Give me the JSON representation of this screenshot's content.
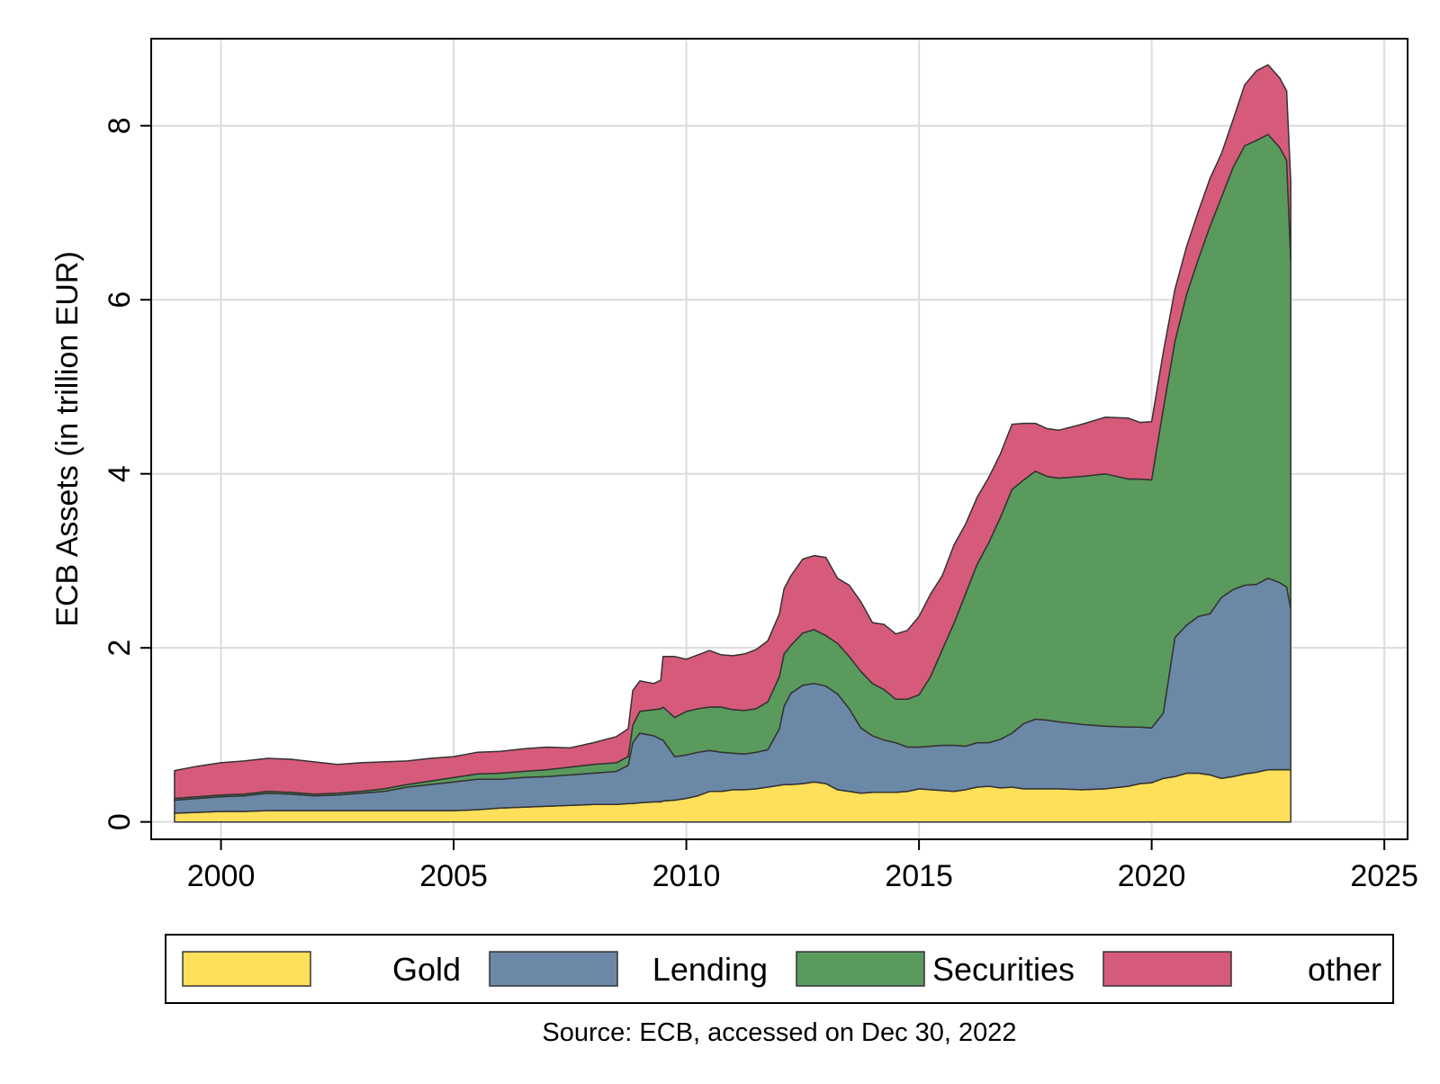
{
  "chart_data": {
    "type": "area",
    "stacked": true,
    "title": "",
    "xlabel": "",
    "ylabel": "ECB Assets (in trillion EUR)",
    "note": "Source: ECB, accessed on Dec 30, 2022",
    "xlim": [
      1998.5,
      2025.5
    ],
    "ylim": [
      -0.2,
      9.0
    ],
    "xticks": [
      2000,
      2005,
      2010,
      2015,
      2020,
      2025
    ],
    "yticks": [
      0,
      2,
      4,
      6,
      8
    ],
    "grid": true,
    "legend_position": "bottom",
    "x": [
      1999.0,
      1999.5,
      2000.0,
      2000.5,
      2001.0,
      2001.5,
      2002.0,
      2002.5,
      2003.0,
      2003.5,
      2004.0,
      2004.5,
      2005.0,
      2005.5,
      2006.0,
      2006.5,
      2007.0,
      2007.5,
      2008.0,
      2008.5,
      2008.75,
      2008.85,
      2009.0,
      2009.3,
      2009.45,
      2009.5,
      2009.75,
      2010.0,
      2010.25,
      2010.5,
      2010.75,
      2011.0,
      2011.25,
      2011.5,
      2011.75,
      2012.0,
      2012.1,
      2012.25,
      2012.5,
      2012.75,
      2013.0,
      2013.25,
      2013.5,
      2013.75,
      2014.0,
      2014.25,
      2014.5,
      2014.75,
      2015.0,
      2015.25,
      2015.5,
      2015.75,
      2016.0,
      2016.25,
      2016.5,
      2016.75,
      2017.0,
      2017.25,
      2017.5,
      2017.75,
      2018.0,
      2018.5,
      2019.0,
      2019.5,
      2019.75,
      2020.0,
      2020.25,
      2020.5,
      2020.75,
      2021.0,
      2021.25,
      2021.5,
      2021.75,
      2022.0,
      2022.25,
      2022.5,
      2022.75,
      2022.9,
      2022.99
    ],
    "series": [
      {
        "name": "Gold",
        "color": "#ffe05a",
        "values": [
          0.1,
          0.11,
          0.12,
          0.12,
          0.13,
          0.13,
          0.13,
          0.13,
          0.13,
          0.13,
          0.13,
          0.13,
          0.13,
          0.14,
          0.16,
          0.17,
          0.18,
          0.19,
          0.2,
          0.2,
          0.21,
          0.21,
          0.22,
          0.23,
          0.23,
          0.24,
          0.25,
          0.27,
          0.3,
          0.35,
          0.35,
          0.37,
          0.37,
          0.38,
          0.4,
          0.42,
          0.43,
          0.43,
          0.44,
          0.46,
          0.44,
          0.37,
          0.35,
          0.33,
          0.34,
          0.34,
          0.34,
          0.35,
          0.38,
          0.37,
          0.36,
          0.35,
          0.37,
          0.4,
          0.41,
          0.39,
          0.4,
          0.38,
          0.38,
          0.38,
          0.38,
          0.37,
          0.38,
          0.41,
          0.44,
          0.45,
          0.5,
          0.52,
          0.56,
          0.56,
          0.54,
          0.5,
          0.52,
          0.55,
          0.57,
          0.6,
          0.6,
          0.6,
          0.6
        ]
      },
      {
        "name": "Lending",
        "color": "#6c88a7",
        "values": [
          0.15,
          0.16,
          0.17,
          0.18,
          0.2,
          0.19,
          0.17,
          0.18,
          0.2,
          0.22,
          0.27,
          0.3,
          0.33,
          0.35,
          0.33,
          0.34,
          0.34,
          0.35,
          0.36,
          0.38,
          0.44,
          0.7,
          0.8,
          0.76,
          0.72,
          0.7,
          0.5,
          0.5,
          0.5,
          0.47,
          0.45,
          0.42,
          0.41,
          0.42,
          0.43,
          0.65,
          0.9,
          1.05,
          1.13,
          1.13,
          1.12,
          1.1,
          0.95,
          0.75,
          0.65,
          0.6,
          0.57,
          0.51,
          0.48,
          0.5,
          0.52,
          0.53,
          0.5,
          0.51,
          0.5,
          0.56,
          0.62,
          0.75,
          0.8,
          0.79,
          0.77,
          0.75,
          0.72,
          0.68,
          0.65,
          0.63,
          0.75,
          1.6,
          1.7,
          1.8,
          1.85,
          2.08,
          2.15,
          2.17,
          2.16,
          2.2,
          2.15,
          2.1,
          1.85
        ]
      },
      {
        "name": "Securities",
        "color": "#5b9a5d",
        "values": [
          0.02,
          0.02,
          0.02,
          0.02,
          0.02,
          0.02,
          0.02,
          0.02,
          0.02,
          0.03,
          0.03,
          0.04,
          0.05,
          0.06,
          0.07,
          0.07,
          0.08,
          0.09,
          0.1,
          0.1,
          0.1,
          0.2,
          0.25,
          0.3,
          0.35,
          0.38,
          0.45,
          0.5,
          0.5,
          0.5,
          0.52,
          0.5,
          0.5,
          0.5,
          0.55,
          0.6,
          0.6,
          0.55,
          0.6,
          0.62,
          0.58,
          0.58,
          0.6,
          0.65,
          0.6,
          0.58,
          0.5,
          0.55,
          0.6,
          0.8,
          1.1,
          1.4,
          1.75,
          2.05,
          2.3,
          2.55,
          2.8,
          2.8,
          2.85,
          2.8,
          2.8,
          2.85,
          2.9,
          2.85,
          2.85,
          2.85,
          3.5,
          3.4,
          3.8,
          4.1,
          4.45,
          4.6,
          4.85,
          5.05,
          5.1,
          5.1,
          5.0,
          4.9,
          4.0
        ]
      },
      {
        "name": "other",
        "color": "#d65b7a",
        "values": [
          0.32,
          0.35,
          0.37,
          0.38,
          0.38,
          0.38,
          0.37,
          0.33,
          0.33,
          0.31,
          0.27,
          0.26,
          0.24,
          0.25,
          0.25,
          0.26,
          0.26,
          0.22,
          0.25,
          0.3,
          0.32,
          0.4,
          0.35,
          0.3,
          0.33,
          0.58,
          0.7,
          0.6,
          0.62,
          0.65,
          0.6,
          0.62,
          0.65,
          0.68,
          0.7,
          0.72,
          0.75,
          0.8,
          0.85,
          0.85,
          0.9,
          0.75,
          0.82,
          0.8,
          0.7,
          0.75,
          0.75,
          0.79,
          0.9,
          0.95,
          0.85,
          0.9,
          0.8,
          0.77,
          0.75,
          0.73,
          0.75,
          0.65,
          0.55,
          0.55,
          0.55,
          0.6,
          0.65,
          0.7,
          0.65,
          0.67,
          0.65,
          0.6,
          0.55,
          0.55,
          0.55,
          0.5,
          0.55,
          0.7,
          0.8,
          0.8,
          0.8,
          0.8,
          0.9
        ]
      }
    ]
  }
}
